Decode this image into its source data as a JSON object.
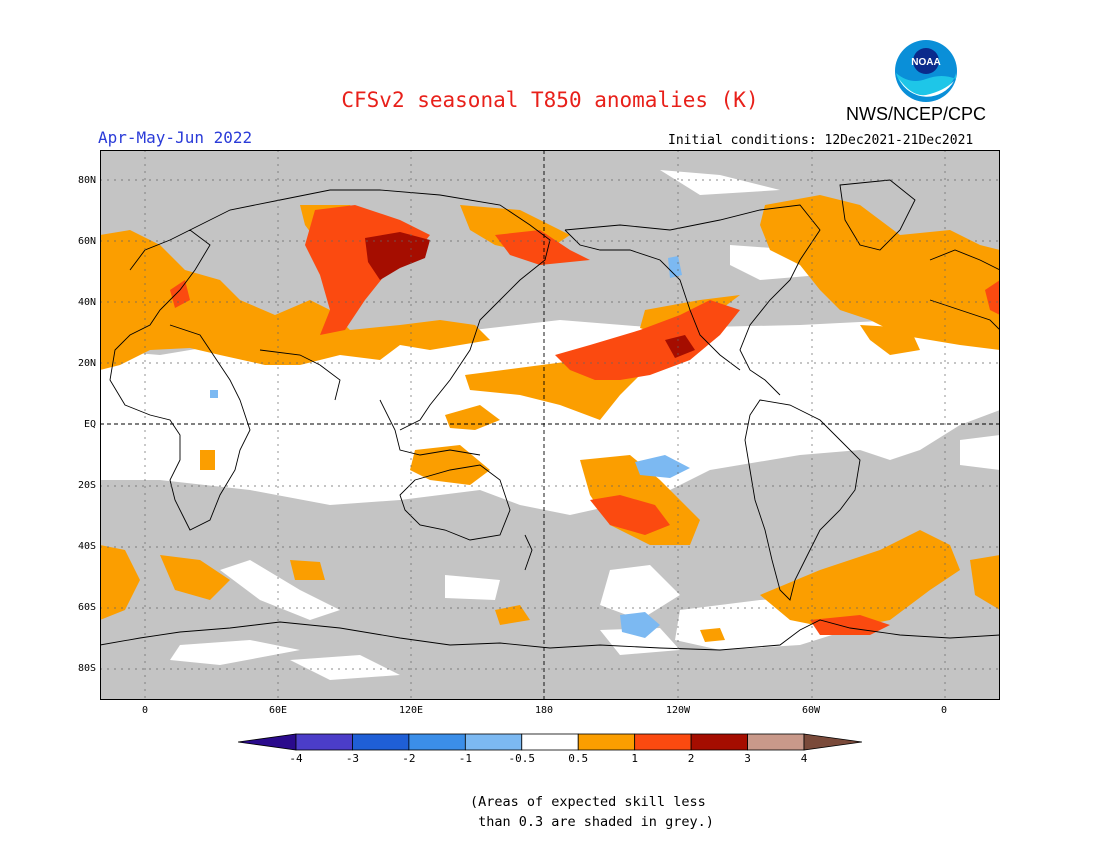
{
  "title": "CFSv2 seasonal T850 anomalies (K)",
  "agency": "NWS/NCEP/CPC",
  "logo_text": "NOAA",
  "period": "Apr-May-Jun 2022",
  "initial_conditions": "Initial conditions: 12Dec2021-21Dec2021",
  "latitude_labels": [
    "80N",
    "60N",
    "40N",
    "20N",
    "EQ",
    "20S",
    "40S",
    "60S",
    "80S"
  ],
  "longitude_labels": [
    "0",
    "60E",
    "120E",
    "180",
    "120W",
    "60W",
    "0"
  ],
  "colorbar": {
    "levels": [
      "-4",
      "-3",
      "-2",
      "-1",
      "-0.5",
      "0.5",
      "1",
      "2",
      "3",
      "4"
    ],
    "colors": [
      "#2a0a8c",
      "#4b3dc8",
      "#1f5fd6",
      "#3b8ee8",
      "#7cb9f2",
      "#ffffff",
      "#fb9e00",
      "#fb4a10",
      "#a50d00",
      "#c9998a",
      "#7a4a3a"
    ]
  },
  "skill_note": "(Areas of expected skill less\n than 0.3 are shaded in grey.)",
  "colors": {
    "title": "#e8201a",
    "period": "#2a3bd8",
    "grey_skill": "#c4c4c4",
    "anomaly_05_1": "#fb9e00",
    "anomaly_1_2": "#fb4a10",
    "anomaly_2_3": "#a50d00",
    "anomaly_neg": "#7cb9f2"
  }
}
